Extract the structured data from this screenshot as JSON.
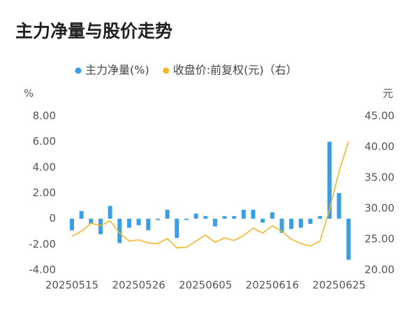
{
  "chart_data": {
    "type": "bar_line",
    "title": "主力净量与股价走势",
    "y_label": "%",
    "y2_label": "元",
    "categories": [
      "20250515",
      null,
      null,
      null,
      null,
      null,
      null,
      "20250526",
      null,
      null,
      null,
      null,
      null,
      null,
      "20250605",
      null,
      null,
      null,
      null,
      null,
      null,
      "20250616",
      null,
      null,
      null,
      null,
      null,
      null,
      "20250625",
      null
    ],
    "series": [
      {
        "name": "主力净量(%)",
        "type": "bar",
        "color": "#3a9ee4",
        "values": [
          -0.9,
          0.6,
          -0.4,
          -1.2,
          1.0,
          -1.9,
          -0.7,
          -0.5,
          -0.9,
          -0.1,
          0.7,
          -1.5,
          -0.1,
          0.4,
          0.2,
          -0.6,
          0.2,
          0.2,
          0.7,
          0.7,
          -0.3,
          0.5,
          -1.1,
          -0.8,
          -0.7,
          -0.4,
          0.2,
          6.0,
          2.0,
          -3.2
        ]
      },
      {
        "name": "收盘价:前复权(元)（右）",
        "type": "line",
        "axis": "y2",
        "color": "#f5b62b",
        "values": [
          25.5,
          26.3,
          27.6,
          27.2,
          28.0,
          26.0,
          24.7,
          24.9,
          24.4,
          24.3,
          25.1,
          23.6,
          23.7,
          24.7,
          25.7,
          24.5,
          25.2,
          24.8,
          25.6,
          26.8,
          26.0,
          27.2,
          26.3,
          25.0,
          24.3,
          23.9,
          24.7,
          29.8,
          36.0,
          40.9
        ]
      }
    ],
    "ylim": [
      -4,
      8
    ],
    "yticks": [
      {
        "value": 8,
        "label": "8.00"
      },
      {
        "value": 6,
        "label": "6.00"
      },
      {
        "value": 4,
        "label": "4.00"
      },
      {
        "value": 2,
        "label": "2.00"
      },
      0,
      {
        "value": -2,
        "label": "-2.00"
      },
      {
        "value": -4,
        "label": "-4.00"
      }
    ],
    "y2lim": [
      20,
      45
    ],
    "y2ticks": [
      {
        "value": 45,
        "label": "45.00"
      },
      {
        "value": 40,
        "label": "40.00"
      },
      {
        "value": 35,
        "label": "35.00"
      },
      {
        "value": 30,
        "label": "30.00"
      },
      {
        "value": 25,
        "label": "25.00"
      },
      {
        "value": 20,
        "label": "20.00"
      }
    ]
  }
}
